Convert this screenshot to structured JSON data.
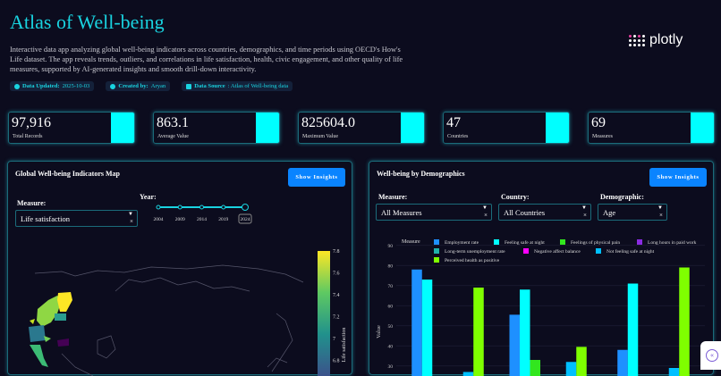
{
  "header": {
    "title": "Atlas of Well-being",
    "description": "Interactive data app analyzing global well-being indicators across countries, demographics, and time periods using OECD's How's Life dataset. The app reveals trends, outliers, and correlations in life satisfaction, health, civic engagement, and other quality of life measures, supported by AI-generated insights and smooth drill-down interactivity.",
    "badges": [
      {
        "label": "Data Updated:",
        "value": "2025-10-03",
        "icon": "check-circle-icon"
      },
      {
        "label": "Created by:",
        "value": "Aryan",
        "icon": "user-icon"
      },
      {
        "label": "Data Source",
        "value": ": Atlas of Well-being data",
        "icon": "database-icon"
      }
    ],
    "logo": "plotly"
  },
  "kpis": [
    {
      "value": "97,916",
      "label": "Total Records"
    },
    {
      "value": "863.1",
      "label": "Average Value"
    },
    {
      "value": "825604.0",
      "label": "Maximum Value"
    },
    {
      "value": "47",
      "label": "Countries"
    },
    {
      "value": "69",
      "label": "Measures"
    }
  ],
  "colors": {
    "accent": "#19d3e0",
    "kpi_bar": "#00ffff",
    "button": "#0a84ff",
    "background": "#0c0c1e"
  },
  "map_panel": {
    "title": "Global Well-being Indicators Map",
    "insights_label": "Show Insights",
    "measure_label": "Measure:",
    "measure_value": "Life satisfaction",
    "year_label": "Year:",
    "years": [
      "2004",
      "2009",
      "2014",
      "2019",
      "2024"
    ],
    "selected_year": "2024",
    "colorbar": {
      "title": "Life satisfaction",
      "ticks": [
        "7.8",
        "7.6",
        "7.4",
        "7.2",
        "7",
        "6.8"
      ]
    }
  },
  "demo_panel": {
    "title": "Well-being by Demographics",
    "insights_label": "Show Insights",
    "measure_label": "Measure:",
    "measure_value": "All Measures",
    "country_label": "Country:",
    "country_value": "All Countries",
    "demographic_label": "Demographic:",
    "demographic_value": "Age"
  },
  "chart_data": {
    "type": "bar",
    "ylabel": "Value",
    "legend_title": "Measure",
    "ylim": [
      25,
      93
    ],
    "yticks": [
      30,
      40,
      50,
      60,
      70,
      80,
      90
    ],
    "grid": true,
    "legend": "top",
    "series": [
      {
        "name": "Employment rate",
        "color": "#1e90ff",
        "values": [
          78,
          null,
          55.5,
          null,
          38,
          null
        ]
      },
      {
        "name": "Feeling safe at night",
        "color": "#00ffff",
        "values": [
          73,
          null,
          68,
          null,
          71,
          null
        ]
      },
      {
        "name": "Feelings of physical pain",
        "color": "#32e61e",
        "values": [
          null,
          null,
          33,
          null,
          null,
          null
        ]
      },
      {
        "name": "Long hours in paid work",
        "color": "#8a2be2",
        "values": [
          null,
          null,
          null,
          null,
          null,
          null
        ]
      },
      {
        "name": "Long-term unemployment rate",
        "color": "#20b2aa",
        "values": [
          null,
          null,
          null,
          null,
          null,
          null
        ]
      },
      {
        "name": "Negative affect balance",
        "color": "#ff00ff",
        "values": [
          null,
          null,
          null,
          null,
          null,
          null
        ]
      },
      {
        "name": "Not feeling safe at night",
        "color": "#00bfff",
        "values": [
          null,
          27,
          null,
          32,
          null,
          29
        ]
      },
      {
        "name": "Perceived health as positive",
        "color": "#7fff00",
        "values": [
          null,
          69,
          null,
          39.5,
          null,
          79
        ]
      }
    ]
  }
}
